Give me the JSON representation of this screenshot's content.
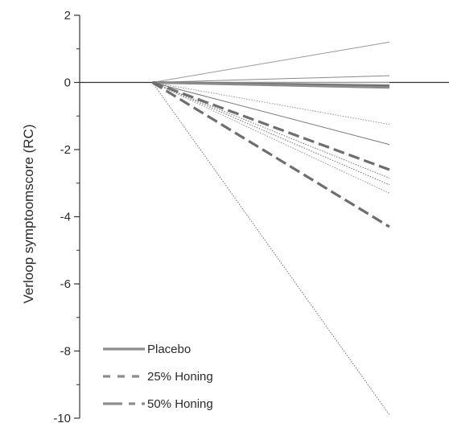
{
  "chart_data": {
    "type": "line",
    "title": "",
    "xlabel": "",
    "ylabel": "Verloop symptoomscore (RC)",
    "ylim": [
      -10,
      2
    ],
    "yticks": [
      "2",
      "0",
      "-2",
      "-4",
      "-6",
      "-8",
      "-10"
    ],
    "ytick_values": [
      2,
      0,
      -2,
      -4,
      -6,
      -8,
      -10
    ],
    "x_domain": [
      0,
      1
    ],
    "line_start": 0.235,
    "grid": false,
    "legend_position": "bottom-left",
    "legend": [
      {
        "label": "Placebo",
        "style": "solid",
        "color": "#8c8c8c"
      },
      {
        "label": "25% Honing",
        "style": "dashed",
        "color": "#8c8c8c"
      },
      {
        "label": "50% Honing",
        "style": "dashdot",
        "color": "#8c8c8c"
      }
    ],
    "series": [
      {
        "end": 1.2,
        "style": "thin-solid",
        "color": "#9a9a9a"
      },
      {
        "end": 0.2,
        "style": "thin-solid",
        "color": "#8a8a8a"
      },
      {
        "end": 0.0,
        "style": "thin-solid",
        "color": "#9a9a9a"
      },
      {
        "end": -0.1,
        "style": "thick-solid",
        "color": "#6e6e6e"
      },
      {
        "end": -0.15,
        "style": "thick-solid",
        "color": "#8a8a8a"
      },
      {
        "end": -1.25,
        "style": "dotted",
        "color": "#9a9a9a"
      },
      {
        "end": -1.85,
        "style": "thin-solid",
        "color": "#7a7a7a"
      },
      {
        "end": -2.6,
        "style": "thick-dashed",
        "color": "#6e6e6e"
      },
      {
        "end": -2.85,
        "style": "dotted",
        "color": "#7a7a7a"
      },
      {
        "end": -3.05,
        "style": "dotted",
        "color": "#7a7a7a"
      },
      {
        "end": -3.3,
        "style": "dotted",
        "color": "#9a9a9a"
      },
      {
        "end": -4.3,
        "style": "thick-dashed",
        "color": "#6e6e6e"
      },
      {
        "end": -9.9,
        "style": "dotted",
        "color": "#7a7a7a"
      }
    ]
  }
}
